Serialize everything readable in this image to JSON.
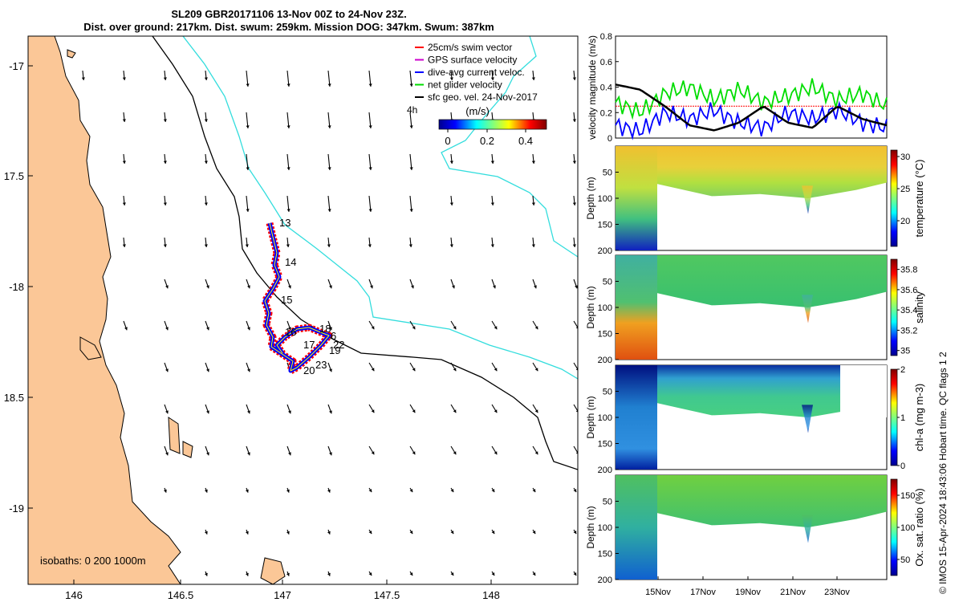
{
  "title_line1": "SL209 GBR20171106 13-Nov 00Z to 24-Nov 23Z.",
  "title_line2": "Dist. over ground: 217km. Dist. swum: 259km. Mission DOG: 347km. Swum: 387km",
  "credit": "© IMOS 15-Apr-2024 18:43:06 Hobart time. QC flags 1  2",
  "map": {
    "lon_ticks": [
      "146",
      "146.5",
      "147",
      "147.5",
      "148"
    ],
    "lat_ticks": [
      "-17",
      "17.5",
      "-18",
      "18.5",
      "-19"
    ],
    "legend": [
      {
        "label": "25cm/s swim vector",
        "color": "#ff0000"
      },
      {
        "label": "GPS surface velocity",
        "color": "#cc00cc"
      },
      {
        "label": "dive-avg current veloc.",
        "color": "#0000ff"
      },
      {
        "label": "net glider velocity",
        "color": "#00dd00"
      },
      {
        "label": "sfc geo. vel. 24-Nov-2017",
        "color": "#000000"
      }
    ],
    "colorbar_unit": "(m/s)",
    "colorbar_ticks": [
      "0",
      "0.2",
      "0.4"
    ],
    "extra_label": "4h",
    "isobaths": "isobaths: 0   200  1000m",
    "day_labels": [
      "13",
      "14",
      "15",
      "16",
      "17",
      "18",
      "19",
      "20",
      "22",
      "23",
      "6"
    ],
    "land_color": "#fbc797",
    "isobath_200_color": "#000000",
    "isobath_1000_color": "#33dddd"
  },
  "chart_data": [
    {
      "type": "line",
      "ylabel": "velocity magnitude (m/s)",
      "ylim": [
        0,
        0.8
      ],
      "yticks": [
        "0",
        "0.2",
        "0.4",
        "0.6",
        "0.8"
      ],
      "series": [
        {
          "name": "25cm/s swim vector",
          "color": "#ff0000",
          "values": [
            0.25,
            0.25,
            0.25,
            0.25,
            0.25,
            0.25,
            0.25,
            0.25,
            0.25,
            0.25,
            0.25,
            0.25
          ]
        },
        {
          "name": "net glider velocity",
          "color": "#00dd00",
          "values": [
            0.28,
            0.2,
            0.35,
            0.4,
            0.3,
            0.38,
            0.28,
            0.33,
            0.4,
            0.3,
            0.35,
            0.25
          ]
        },
        {
          "name": "dive-avg current veloc.",
          "color": "#0000ff",
          "values": [
            0.1,
            0.05,
            0.2,
            0.15,
            0.22,
            0.12,
            0.08,
            0.2,
            0.15,
            0.22,
            0.12,
            0.08
          ]
        },
        {
          "name": "sfc geo. vel. 24-Nov-2017",
          "color": "#000000",
          "values": [
            0.42,
            0.38,
            0.25,
            0.1,
            0.06,
            0.12,
            0.25,
            0.12,
            0.08,
            0.25,
            0.15,
            0.1
          ]
        }
      ]
    },
    {
      "type": "heatmap",
      "ylabel": "Depth (m)",
      "yticks": [
        "50",
        "100",
        "150",
        "200"
      ],
      "ylim": [
        200,
        0
      ],
      "cbar_label": "temperature (°C)",
      "cbar_ticks": [
        "20",
        "25",
        "30"
      ],
      "crange": [
        16,
        31
      ]
    },
    {
      "type": "heatmap",
      "ylabel": "Depth (m)",
      "yticks": [
        "50",
        "100",
        "150",
        "200"
      ],
      "ylim": [
        200,
        0
      ],
      "cbar_label": "salinity",
      "cbar_ticks": [
        "35",
        "35.2",
        "35.4",
        "35.6",
        "35.8"
      ],
      "crange": [
        34.95,
        35.9
      ]
    },
    {
      "type": "heatmap",
      "ylabel": "Depth (m)",
      "yticks": [
        "50",
        "100",
        "150",
        "200"
      ],
      "ylim": [
        200,
        0
      ],
      "cbar_label": "chl-a (mg m-3)",
      "cbar_ticks": [
        "0",
        "1",
        "2"
      ],
      "crange": [
        0,
        2
      ]
    },
    {
      "type": "heatmap",
      "ylabel": "Depth (m)",
      "yticks": [
        "50",
        "100",
        "150",
        "200"
      ],
      "ylim": [
        200,
        0
      ],
      "cbar_label": "Ox. sat. ratio (%)",
      "cbar_ticks": [
        "50",
        "100",
        "150"
      ],
      "crange": [
        25,
        175
      ],
      "xticks": [
        "15Nov",
        "17Nov",
        "19Nov",
        "21Nov",
        "23Nov"
      ]
    }
  ]
}
